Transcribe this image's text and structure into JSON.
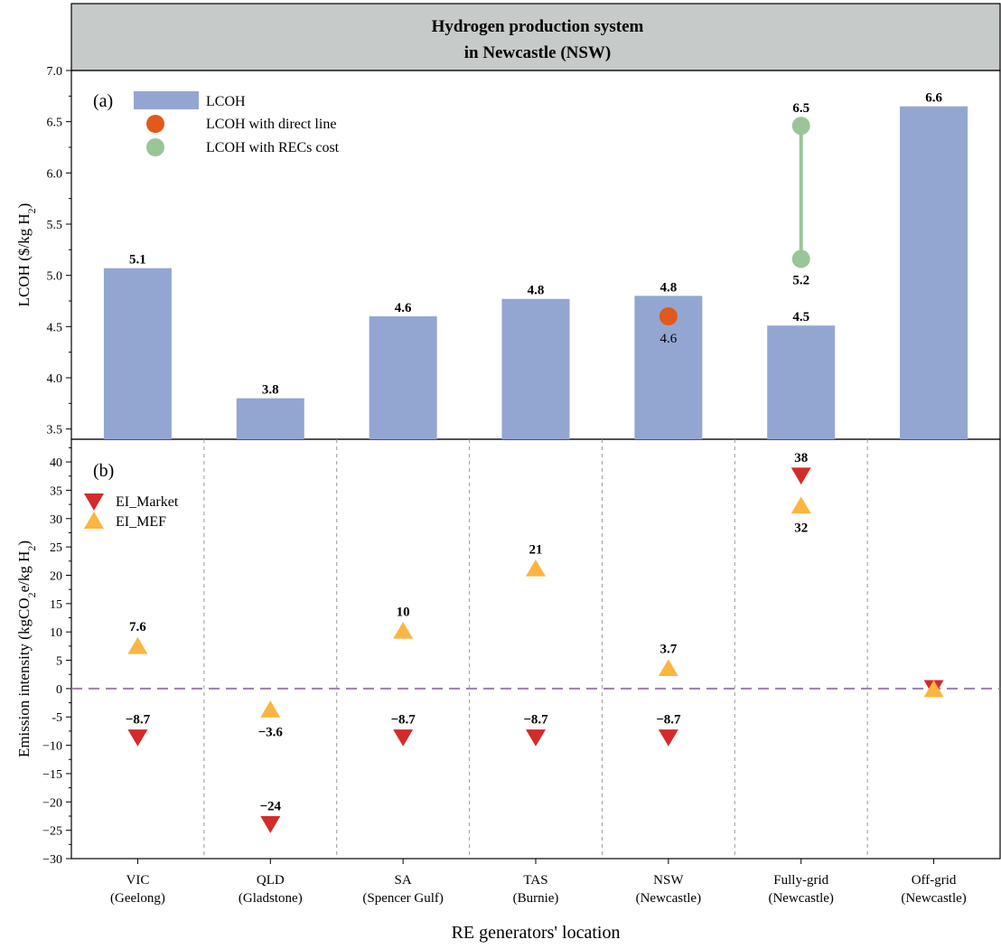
{
  "chart_data": [
    {
      "type": "bar",
      "panel_label": "(a)",
      "title": "Hydrogen production system\nin Newcastle (NSW)",
      "ylabel": "LCOH ($/kg H2)",
      "ylabel_parts": {
        "main": "LCOH ($/kg H",
        "sub": "2",
        "tail": ")"
      },
      "ylim": [
        3.4,
        7.0
      ],
      "yticks": [
        3.5,
        4.0,
        4.5,
        5.0,
        5.5,
        6.0,
        6.5,
        7.0
      ],
      "ytick_labels": [
        "3.5",
        "4.0",
        "4.5",
        "5.0",
        "5.5",
        "6.0",
        "6.5",
        "7.0"
      ],
      "categories": [
        "VIC",
        "QLD",
        "SA",
        "TAS",
        "NSW",
        "Fully-grid",
        "Off-grid"
      ],
      "values": [
        5.07,
        3.8,
        4.6,
        4.77,
        4.8,
        4.51,
        6.65
      ],
      "value_labels": [
        "5.1",
        "3.8",
        "4.6",
        "4.8",
        "4.8",
        "4.5",
        "6.6"
      ],
      "legend": [
        {
          "label": "LCOH",
          "color": "#93a6d2",
          "marker": "rect"
        },
        {
          "label": "LCOH with direct line",
          "color": "#e2591c",
          "marker": "circle"
        },
        {
          "label": "LCOH with RECs cost",
          "color": "#99c598",
          "marker": "circle"
        }
      ],
      "direct_line": [
        {
          "category_index": 4,
          "value": 4.6,
          "label": "4.6"
        }
      ],
      "recs_range": [
        {
          "category_index": 5,
          "low": 5.16,
          "high": 6.46,
          "low_label": "5.2",
          "high_label": "6.5"
        }
      ],
      "legend_position": "top-left"
    },
    {
      "type": "scatter",
      "panel_label": "(b)",
      "ylabel": "Emission intensity (kgCO2e/kg H2)",
      "ylabel_parts": {
        "a": "Emission intensity (kgCO",
        "sub1": "2",
        "b": "e/kg H",
        "sub2": "2",
        "c": ")"
      },
      "ylim": [
        -30,
        44
      ],
      "yticks": [
        -30,
        -25,
        -20,
        -15,
        -10,
        -5,
        0,
        5,
        10,
        15,
        20,
        25,
        30,
        35,
        40
      ],
      "ytick_labels": [
        "−30",
        "−25",
        "−20",
        "−15",
        "−10",
        "-5",
        "0",
        "5",
        "10",
        "15",
        "20",
        "25",
        "30",
        "35",
        "40"
      ],
      "categories": [
        "VIC",
        "QLD",
        "SA",
        "TAS",
        "NSW",
        "Fully-grid",
        "Off-grid"
      ],
      "category_sublabels": [
        "(Geelong)",
        "(Gladstone)",
        "(Spencer Gulf)",
        "(Burnie)",
        "(Newcastle)",
        "(Newcastle)",
        "(Newcastle)"
      ],
      "xlabel": "RE generators' location",
      "series": [
        {
          "name": "EI_Market",
          "color": "#d42a2a",
          "marker": "triangle-down",
          "values": [
            -8.7,
            -24,
            -8.7,
            -8.7,
            -8.7,
            37.5,
            0
          ],
          "labels": [
            "−8.7",
            "−24",
            "−8.7",
            "−8.7",
            "−8.7",
            "38",
            ""
          ]
        },
        {
          "name": "EI_MEF",
          "color": "#fbb540",
          "marker": "triangle-up",
          "values": [
            7.6,
            -3.6,
            10.3,
            21.3,
            3.7,
            32.4,
            0
          ],
          "labels": [
            "7.6",
            "−3.6",
            "10",
            "21",
            "3.7",
            "32",
            ""
          ]
        }
      ],
      "zero_line_color": "#9b7fa6",
      "separator_color": "#999999",
      "legend_position": "top-left"
    }
  ]
}
